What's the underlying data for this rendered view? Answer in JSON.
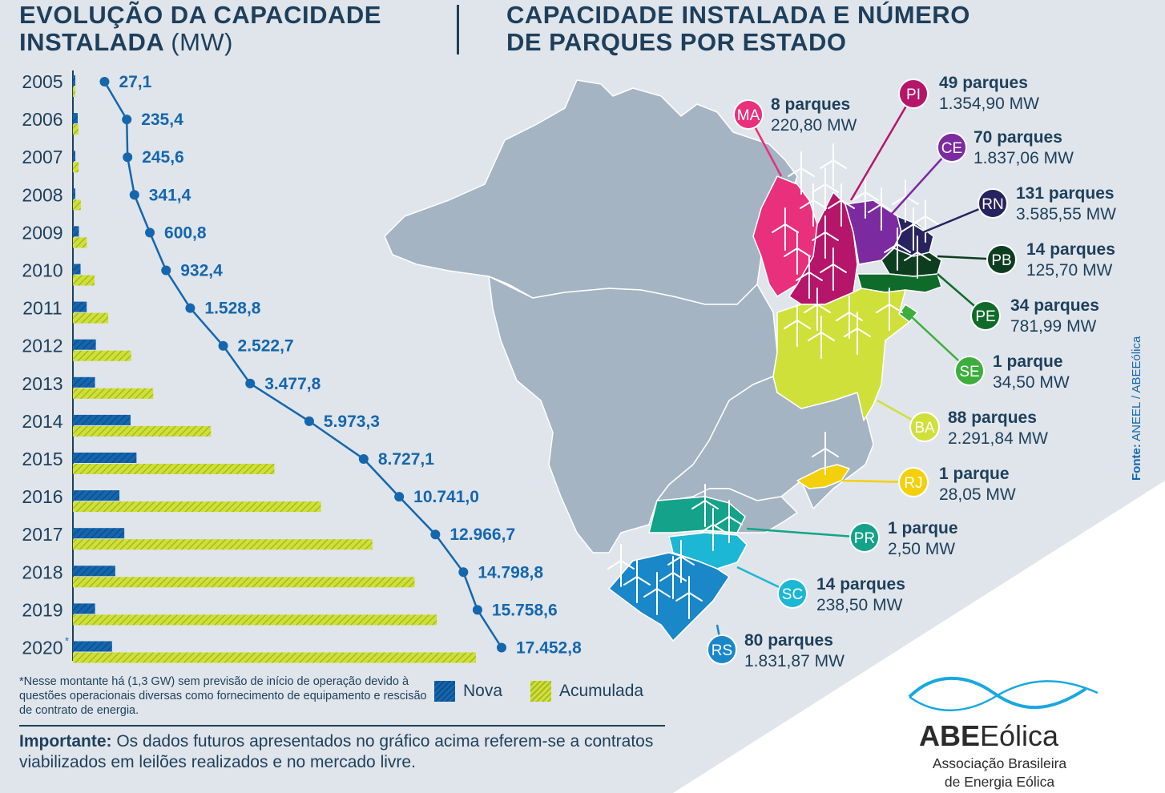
{
  "left_title": {
    "line1": "EVOLUÇÃO DA CAPACIDADE",
    "line2_bold": "INSTALADA",
    "line2_unit": "(MW)"
  },
  "right_title": {
    "line1": "CAPACIDADE INSTALADA E NÚMERO",
    "line2": "DE PARQUES POR ESTADO"
  },
  "chart_data": {
    "type": "bar",
    "title": "EVOLUÇÃO DA CAPACIDADE INSTALADA (MW)",
    "orientation": "horizontal",
    "categories": [
      "2005",
      "2006",
      "2007",
      "2008",
      "2009",
      "2010",
      "2011",
      "2012",
      "2013",
      "2014",
      "2015",
      "2016",
      "2017",
      "2018",
      "2019",
      "2020"
    ],
    "year_marks": [
      "",
      "",
      "",
      "",
      "",
      "",
      "",
      "",
      "",
      "",
      "",
      "",
      "",
      "",
      "",
      "*"
    ],
    "series": [
      {
        "name": "Nova",
        "values": [
          27.1,
          208.3,
          10.2,
          95.8,
          259.4,
          331.6,
          596.4,
          994.0,
          955.1,
          2495.5,
          2753.8,
          2013.9,
          2225.7,
          1832.1,
          959.8,
          1694.2
        ],
        "color": "#1566ad"
      },
      {
        "name": "Acumulada",
        "values": [
          27.1,
          235.4,
          245.6,
          341.4,
          600.8,
          932.4,
          1528.8,
          2522.7,
          3477.8,
          5973.3,
          8727.1,
          10741.0,
          12966.7,
          14798.8,
          15758.6,
          17452.8
        ],
        "color": "#cfe03a"
      }
    ],
    "value_labels": [
      "27,1",
      "235,4",
      "245,6",
      "341,4",
      "600,8",
      "932,4",
      "1.528,8",
      "2.522,7",
      "3.477,8",
      "5.973,3",
      "8.727,1",
      "10.741,0",
      "12.966,7",
      "14.798,8",
      "15.758,6",
      "17.452,8"
    ],
    "line_series": "Acumulada",
    "legend": [
      "Nova",
      "Acumulada"
    ],
    "legend_position": "bottom"
  },
  "footnote": "*Nesse montante há (1,3 GW) sem previsão de início de operação devido à questões operacionais diversas como fornecimento de equipamento e rescisão de contrato de energia.",
  "important": {
    "label": "Importante:",
    "text": "Os dados futuros apresentados no gráfico acima referem-se a contratos viabilizados em leilões realizados e no mercado livre."
  },
  "states": [
    {
      "code": "MA",
      "parques": "8 parques",
      "mw": "220,80 MW",
      "color": "#e8307c"
    },
    {
      "code": "PI",
      "parques": "49 parques",
      "mw": "1.354,90 MW",
      "color": "#b5166a"
    },
    {
      "code": "CE",
      "parques": "70 parques",
      "mw": "1.837,06 MW",
      "color": "#7b2aa0"
    },
    {
      "code": "RN",
      "parques": "131 parques",
      "mw": "3.585,55 MW",
      "color": "#27235e"
    },
    {
      "code": "PB",
      "parques": "14 parques",
      "mw": "125,70 MW",
      "color": "#0d3d1f"
    },
    {
      "code": "PE",
      "parques": "34 parques",
      "mw": "781,99 MW",
      "color": "#0f6b2a"
    },
    {
      "code": "SE",
      "parques": "1 parque",
      "mw": "34,50 MW",
      "color": "#3dae3d"
    },
    {
      "code": "BA",
      "parques": "88 parques",
      "mw": "2.291,84 MW",
      "color": "#cfe03a"
    },
    {
      "code": "RJ",
      "parques": "1 parque",
      "mw": "28,05 MW",
      "color": "#f4d00c"
    },
    {
      "code": "PR",
      "parques": "1 parque",
      "mw": "2,50 MW",
      "color": "#14a38a"
    },
    {
      "code": "SC",
      "parques": "14 parques",
      "mw": "238,50 MW",
      "color": "#1cb7d4"
    },
    {
      "code": "RS",
      "parques": "80 parques",
      "mw": "1.831,87 MW",
      "color": "#1a87c9"
    }
  ],
  "source": {
    "label": "Fonte:",
    "text": "ANEEL / ABEEólica"
  },
  "logo": {
    "brand_bold": "ABE",
    "brand_rest": "Eólica",
    "sub_line1": "Associação Brasileira",
    "sub_line2": "de Energia Eólica"
  }
}
